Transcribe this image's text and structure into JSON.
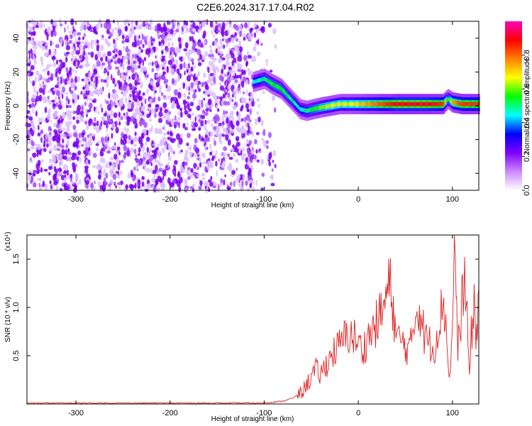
{
  "title": "C2E6.2024.317.17.04.R02",
  "chart_data": [
    {
      "type": "heatmap",
      "xlabel": "Height of straight line (km)",
      "ylabel": "Frequency (Hz)",
      "xlim": [
        -352,
        128
      ],
      "ylim": [
        -50,
        50
      ],
      "xticks": [
        -300,
        -200,
        -100,
        0,
        100
      ],
      "yticks": [
        -40,
        -20,
        0,
        20,
        40
      ],
      "colorbar": {
        "label": "Normalized spectral amplitude",
        "range": [
          0.0,
          1.0
        ],
        "ticks": [
          "0.0",
          "0.2",
          "0.4",
          "0.6",
          "0.8"
        ],
        "colors": [
          "#ffffff",
          "#cc88ff",
          "#7f00ff",
          "#0000ff",
          "#00ffff",
          "#00ff00",
          "#ffff00",
          "#ff8000",
          "#ff0000",
          "#ff00c0"
        ]
      },
      "noise_region": {
        "x": [
          -352,
          -88
        ],
        "y": [
          -50,
          50
        ],
        "amplitude": 0.15
      },
      "ridge": {
        "x": [
          -112,
          -100,
          -92,
          -82,
          -72,
          -62,
          -55,
          -48,
          -40,
          -30,
          -20,
          -10,
          0,
          10,
          20,
          30,
          40,
          50,
          60,
          70,
          80,
          90,
          95,
          100,
          110,
          128
        ],
        "y": [
          14,
          16,
          13,
          10,
          4,
          -2,
          -3,
          -2,
          -1,
          0,
          1,
          1,
          1,
          1,
          1,
          1,
          1,
          1,
          1,
          1,
          1,
          1,
          4,
          2,
          1,
          1
        ],
        "amplitude": [
          0.45,
          0.5,
          0.55,
          0.55,
          0.5,
          0.45,
          0.5,
          0.55,
          0.6,
          0.65,
          0.65,
          0.65,
          0.7,
          0.75,
          0.8,
          0.85,
          0.9,
          0.9,
          0.9,
          0.9,
          0.88,
          0.85,
          0.5,
          0.75,
          0.85,
          0.85
        ]
      }
    },
    {
      "type": "line",
      "xlabel": "Height of straight line (km)",
      "ylabel": "SNR (10 * v/v)",
      "ylabel_scale": "(x10⁴)",
      "xlim": [
        -352,
        128
      ],
      "ylim": [
        0,
        1.75
      ],
      "xticks": [
        -300,
        -200,
        -100,
        0,
        100
      ],
      "yticks": [
        0.5,
        1.0,
        1.5
      ],
      "series": [
        {
          "color": "#e02020",
          "x": [
            -352,
            -300,
            -250,
            -200,
            -150,
            -110,
            -100,
            -90,
            -80,
            -70,
            -60,
            -55,
            -50,
            -45,
            -40,
            -35,
            -30,
            -25,
            -20,
            -15,
            -10,
            -5,
            0,
            5,
            10,
            15,
            20,
            25,
            30,
            33,
            35,
            38,
            40,
            45,
            50,
            55,
            60,
            63,
            65,
            68,
            70,
            75,
            80,
            85,
            88,
            90,
            93,
            95,
            98,
            100,
            102,
            104,
            105,
            108,
            110,
            113,
            115,
            118,
            120,
            123,
            125,
            128
          ],
          "y": [
            0.01,
            0.01,
            0.01,
            0.01,
            0.01,
            0.01,
            0.01,
            0.02,
            0.03,
            0.06,
            0.12,
            0.2,
            0.28,
            0.35,
            0.3,
            0.4,
            0.48,
            0.55,
            0.6,
            0.68,
            0.72,
            0.7,
            0.62,
            0.55,
            0.7,
            0.75,
            0.85,
            0.95,
            1.1,
            1.25,
            1.15,
            0.9,
            0.7,
            0.65,
            0.6,
            0.55,
            0.9,
            1.02,
            1.0,
            0.85,
            0.7,
            0.65,
            0.55,
            0.8,
            0.95,
            1.1,
            0.85,
            0.45,
            0.3,
            0.8,
            1.75,
            1.2,
            0.6,
            0.7,
            1.1,
            1.25,
            1.0,
            0.3,
            0.7,
            1.05,
            0.6,
            1.2
          ]
        }
      ]
    }
  ]
}
